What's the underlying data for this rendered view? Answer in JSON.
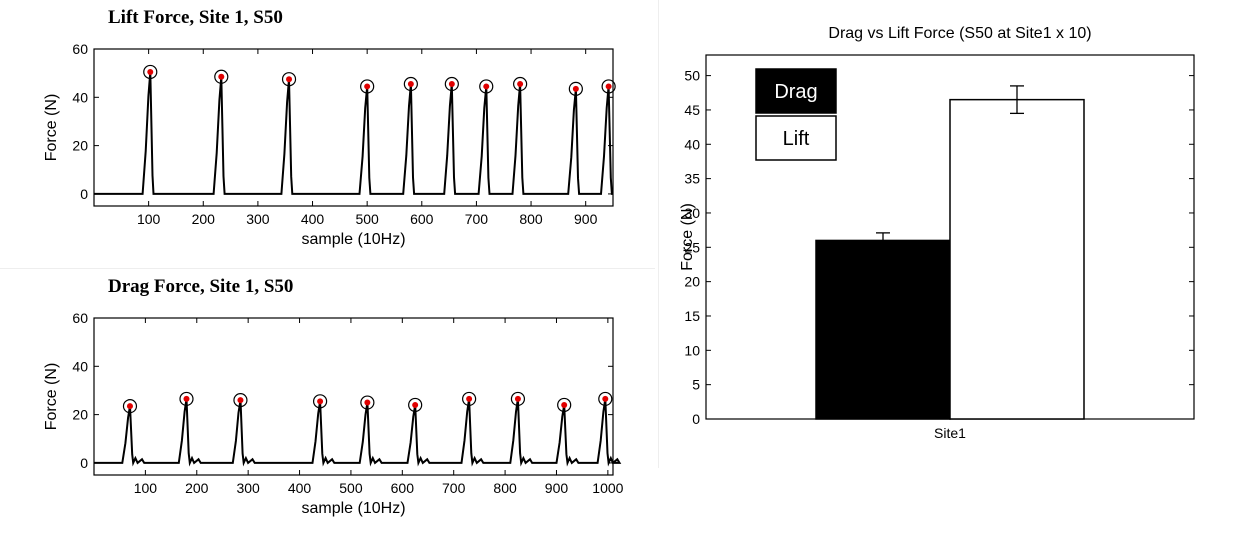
{
  "chart_data": [
    {
      "type": "line",
      "title": "Lift Force, Site 1, S50",
      "xlabel": "sample (10Hz)",
      "ylabel": "Force (N)",
      "xlim": [
        0,
        950
      ],
      "ylim": [
        -5,
        60
      ],
      "xticks": [
        "100",
        "200",
        "300",
        "400",
        "500",
        "600",
        "700",
        "800",
        "900"
      ],
      "yticks": [
        "0",
        "20",
        "40",
        "60"
      ],
      "peaks": [
        {
          "x": 103,
          "y": 50.5
        },
        {
          "x": 233,
          "y": 48.5
        },
        {
          "x": 357,
          "y": 47.5
        },
        {
          "x": 500,
          "y": 44.5
        },
        {
          "x": 580,
          "y": 45.5
        },
        {
          "x": 655,
          "y": 45.5
        },
        {
          "x": 718,
          "y": 44.5
        },
        {
          "x": 780,
          "y": 45.5
        },
        {
          "x": 882,
          "y": 43.5
        },
        {
          "x": 942,
          "y": 44.5
        }
      ]
    },
    {
      "type": "line",
      "title": "Drag Force, Site 1, S50",
      "xlabel": "sample (10Hz)",
      "ylabel": "Force (N)",
      "xlim": [
        0,
        1010
      ],
      "ylim": [
        -5,
        60
      ],
      "xticks": [
        "100",
        "200",
        "300",
        "400",
        "500",
        "600",
        "700",
        "800",
        "900",
        "1000"
      ],
      "yticks": [
        "0",
        "20",
        "40",
        "60"
      ],
      "peaks": [
        {
          "x": 70,
          "y": 23.5
        },
        {
          "x": 180,
          "y": 26.5
        },
        {
          "x": 285,
          "y": 26
        },
        {
          "x": 440,
          "y": 25.5
        },
        {
          "x": 532,
          "y": 25
        },
        {
          "x": 625,
          "y": 24
        },
        {
          "x": 730,
          "y": 26.5
        },
        {
          "x": 825,
          "y": 26.5
        },
        {
          "x": 915,
          "y": 24
        },
        {
          "x": 995,
          "y": 26.5
        }
      ]
    },
    {
      "type": "bar",
      "title": "Drag vs Lift Force (S50 at Site1 x 10)",
      "xlabel": "",
      "ylabel": "Force (N)",
      "categories": [
        "Site1"
      ],
      "ylim": [
        0,
        53
      ],
      "yticks": [
        "0",
        "5",
        "10",
        "15",
        "20",
        "25",
        "30",
        "35",
        "40",
        "45",
        "50"
      ],
      "series": [
        {
          "name": "Drag",
          "values": [
            26
          ],
          "error": [
            1.1
          ],
          "color": "#000000"
        },
        {
          "name": "Lift",
          "values": [
            46.5
          ],
          "error": [
            2.0
          ],
          "color": "#ffffff"
        }
      ],
      "legend_position": "top-left"
    }
  ]
}
